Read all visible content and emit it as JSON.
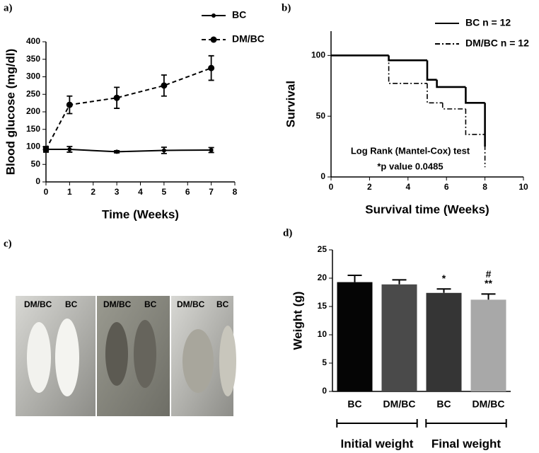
{
  "chart_data": [
    {
      "type": "line",
      "panel_label": "a)",
      "xlabel": "Time (Weeks)",
      "ylabel": "Blood glucose (mg/dl)",
      "x": [
        0,
        1,
        3,
        5,
        7
      ],
      "series": [
        {
          "name": "BC",
          "color": "#000000",
          "style": "solid",
          "values": [
            93,
            93,
            86,
            90,
            91
          ],
          "errors": [
            5,
            8,
            3,
            9,
            7
          ]
        },
        {
          "name": "DM/BC",
          "color": "#000000",
          "style": "dashed",
          "values": [
            93,
            220,
            240,
            275,
            325
          ],
          "errors": [
            8,
            25,
            30,
            30,
            35
          ]
        }
      ],
      "xlim": [
        0,
        8
      ],
      "xticks": [
        0,
        1,
        2,
        3,
        4,
        5,
        6,
        7,
        8
      ],
      "ylim": [
        0,
        400
      ],
      "yticks": [
        0,
        50,
        100,
        150,
        200,
        250,
        300,
        350,
        400
      ],
      "legend": "top-right"
    },
    {
      "type": "step",
      "panel_label": "b)",
      "xlabel": "Survival time (Weeks)",
      "ylabel": "Survival",
      "annotations": [
        "Log Rank (Mantel-Cox) test",
        "*p value 0.0485"
      ],
      "series": [
        {
          "name": "BC  n = 12",
          "color": "#000000",
          "style": "solid",
          "x": [
            0,
            3,
            5,
            5.5,
            7,
            8
          ],
          "values": [
            100,
            96,
            80,
            74,
            61,
            25
          ]
        },
        {
          "name": "DM/BC  n = 12",
          "color": "#000000",
          "style": "dashdot",
          "x": [
            0,
            3,
            5,
            5.8,
            7,
            8
          ],
          "values": [
            100,
            77,
            61,
            56,
            35,
            8
          ]
        }
      ],
      "xlim": [
        0,
        10
      ],
      "xticks": [
        0,
        2,
        4,
        6,
        8,
        10
      ],
      "ylim": [
        0,
        120
      ],
      "yticks": [
        0,
        50,
        100
      ],
      "legend": "top-right"
    },
    {
      "type": "bar",
      "panel_label": "d)",
      "ylabel": "Weight (g)",
      "categories": [
        "BC",
        "DM/BC",
        "BC",
        "DM/BC"
      ],
      "values": [
        19.3,
        18.9,
        17.4,
        16.2
      ],
      "errors": [
        1.2,
        0.8,
        0.7,
        1.0
      ],
      "colors": [
        "#050505",
        "#4a4a4a",
        "#353535",
        "#a8a8a8"
      ],
      "significance": [
        null,
        null,
        [
          "*"
        ],
        [
          "#",
          "**"
        ]
      ],
      "group_labels": [
        "Initial weight",
        "Final weight"
      ],
      "ylim": [
        0,
        25
      ],
      "yticks": [
        0,
        5,
        10,
        15,
        20,
        25
      ]
    }
  ],
  "photos": {
    "panel_label": "c)",
    "images": [
      {
        "labels": [
          "DM/BC",
          "BC"
        ]
      },
      {
        "labels": [
          "DM/BC",
          "BC"
        ]
      },
      {
        "labels": [
          "DM/BC",
          "BC"
        ]
      }
    ]
  }
}
